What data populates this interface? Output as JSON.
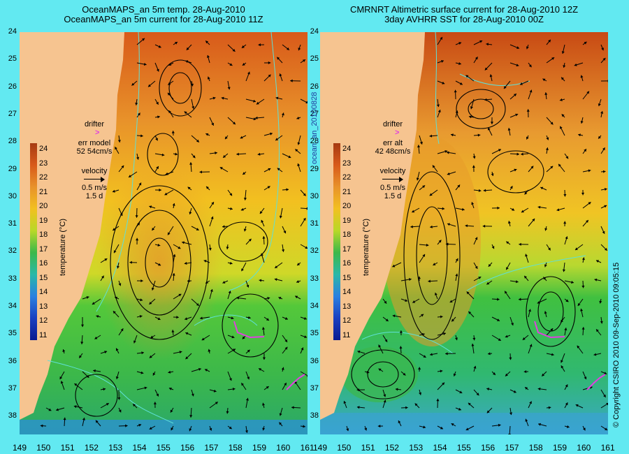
{
  "titles": {
    "left_line1": "OceanMAPS_an 5m temp. 28-Aug-2010",
    "left_line2": "OceanMAPS_an 5m current for 28-Aug-2010 11Z",
    "right_line1": "CMRNRT Altimetric surface current for 28-Aug-2010 12Z",
    "right_line2": "3day AVHRR SST for 28-Aug-2010 00Z"
  },
  "latitude_labels": [
    "24",
    "25",
    "26",
    "27",
    "28",
    "29",
    "30",
    "31",
    "32",
    "33",
    "34",
    "35",
    "36",
    "37",
    "38"
  ],
  "longitude_labels": [
    "149",
    "150",
    "151",
    "152",
    "153",
    "154",
    "155",
    "156",
    "157",
    "158",
    "159",
    "160",
    "161"
  ],
  "colorbar": {
    "ticks": [
      "24",
      "23",
      "22",
      "21",
      "20",
      "19",
      "18",
      "17",
      "16",
      "15",
      "14",
      "13",
      "12",
      "11"
    ],
    "label": "temperature (°C)"
  },
  "left_inset": {
    "drifter": "drifter",
    "drifter_mark": ">",
    "err_label": "err model",
    "err_value": "52 54cm/s",
    "velocity": "velocity",
    "speed": "0.5 m/s",
    "duration": "1.5 d"
  },
  "right_inset": {
    "drifter": "drifter",
    "drifter_mark": ">",
    "err_label": "err alt",
    "err_value": "42 48cm/s",
    "velocity": "velocity",
    "speed": "0.5 m/s",
    "duration": "1.5 d"
  },
  "side_text": {
    "middle": "ocean_an_20100828",
    "right": "© Copyright CSIRO 2010   09-Sep-2010 09:05:15"
  },
  "colors": {
    "frame": "#62e9f1",
    "land": "#f6c490",
    "contour": "#5fe0d8",
    "drifter": "#e040e0"
  }
}
